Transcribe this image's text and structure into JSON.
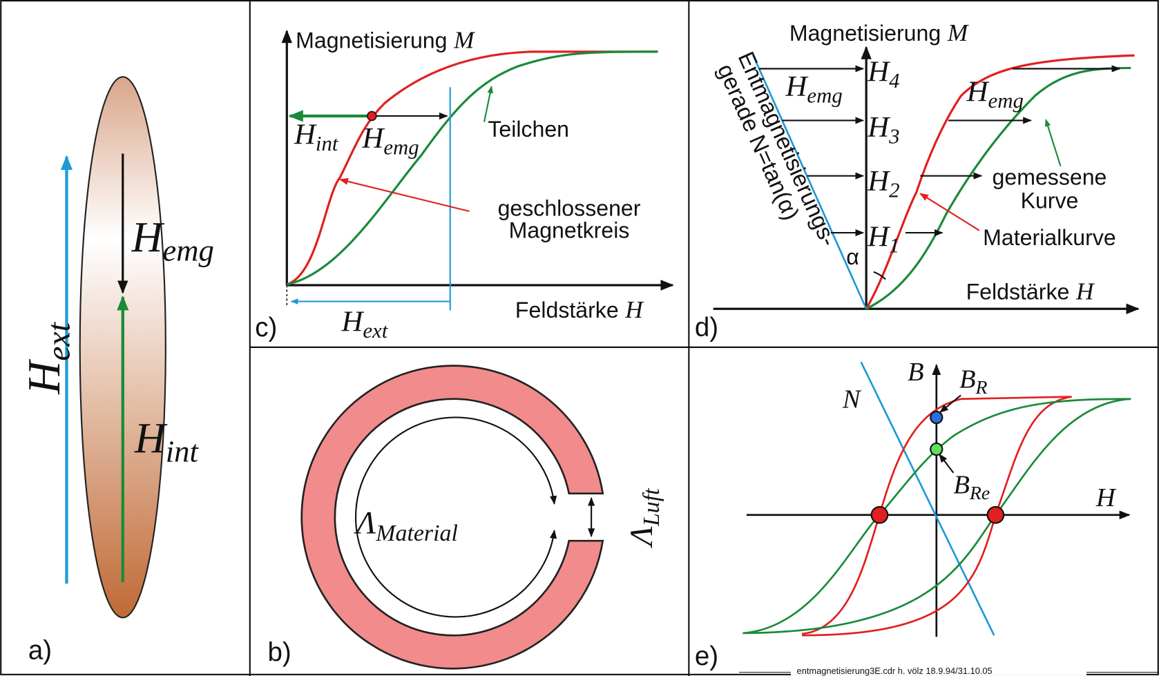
{
  "panels": {
    "a": {
      "label": "a)",
      "h_ext": {
        "main": "H",
        "sub": "ext"
      },
      "h_emg": {
        "main": "H",
        "sub": "emg"
      },
      "h_int": {
        "main": "H",
        "sub": "int"
      }
    },
    "b": {
      "label": "b)",
      "lambda_material": {
        "main": "Λ",
        "sub": "Material"
      },
      "lambda_luft": {
        "main": "Λ",
        "sub": "Luft"
      }
    },
    "c": {
      "label": "c)",
      "y_axis": {
        "word": "Magnetisierung",
        "symbol": "M"
      },
      "x_axis": {
        "word": "Feldstärke",
        "symbol": "H"
      },
      "h_int": {
        "main": "H",
        "sub": "int"
      },
      "h_emg": {
        "main": "H",
        "sub": "emg"
      },
      "h_ext": {
        "main": "H",
        "sub": "ext"
      },
      "particle": "Teilchen",
      "closed_circuit": [
        "geschlossener",
        "Magnetkreis"
      ]
    },
    "d": {
      "label": "d)",
      "y_axis": {
        "word": "Magnetisierung",
        "symbol": "M"
      },
      "x_axis": {
        "word": "Feldstärke",
        "symbol": "H"
      },
      "h_emg": {
        "main": "H",
        "sub": "emg"
      },
      "h_levels": [
        {
          "main": "H",
          "sub": "1"
        },
        {
          "main": "H",
          "sub": "2"
        },
        {
          "main": "H",
          "sub": "3"
        },
        {
          "main": "H",
          "sub": "4"
        }
      ],
      "demag_line": [
        "Entmagnetisierungs-",
        "gerade N=tan(α)"
      ],
      "alpha": "α",
      "measured": [
        "gemessene",
        "Kurve"
      ],
      "material": "Materialkurve"
    },
    "e": {
      "label": "e)",
      "b": "B",
      "b_r": {
        "main": "B",
        "sub": "R"
      },
      "b_re": {
        "main": "B",
        "sub": "Re"
      },
      "n": "N",
      "h": "H"
    }
  },
  "footer": "entmagnetisierung3E.cdr   h. völz   18.9.94/31.10.05"
}
